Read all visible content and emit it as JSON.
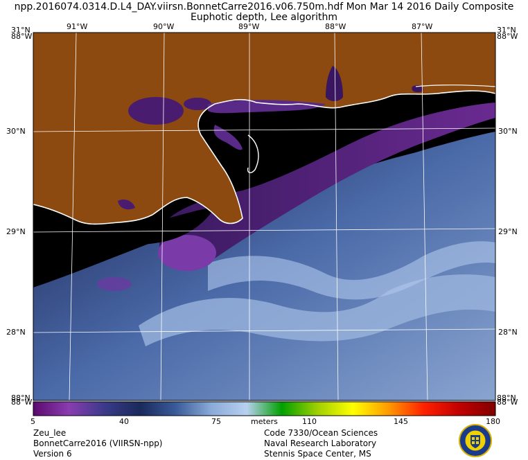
{
  "header": {
    "line1": "npp.2016074.0314.D.L4_DAY.viirsn.BonnetCarre2016.v06.750m.hdf    Mon Mar 14 2016 Daily Composite",
    "line2": "Euphotic depth, Lee algorithm"
  },
  "map": {
    "lon_labels": [
      "91°W",
      "90°W",
      "89°W",
      "88°W",
      "87°W"
    ],
    "lat_labels": [
      "30°N",
      "29°N",
      "28°N"
    ],
    "corner_top_left_top": "31°N",
    "corner_top_left_bottom": "88°W",
    "corner_top_right_top": "31°N",
    "corner_top_right_bottom": "88°W",
    "corner_bottom_left_top": "88°N",
    "corner_bottom_left_bottom": "88°W",
    "corner_bottom_right_top": "88°N",
    "corner_bottom_right_bottom": "88°W",
    "colors": {
      "land": "#8c4a10",
      "no_data": "#000000",
      "coast": "#ffffff",
      "grid": "#ffffff"
    }
  },
  "colorbar": {
    "ticks": [
      "5",
      "40",
      "75",
      "110",
      "145",
      "180"
    ],
    "unit": "meters",
    "stops": [
      "#5a0a6e",
      "#8a3cb0",
      "#3a3a8a",
      "#1a2a5a",
      "#3a5a9a",
      "#8aaad8",
      "#b8d0f0",
      "#00a000",
      "#a0d000",
      "#ffff00",
      "#ff9900",
      "#ff2000",
      "#c00000",
      "#800000"
    ]
  },
  "footer": {
    "left_line1": "Zeu_lee",
    "left_line2": "BonnetCarre2016 (VIIRSN-npp)",
    "left_line3": "Version 6",
    "right_line1": "Code 7330/Ocean Sciences",
    "right_line2": "Naval Research Laboratory",
    "right_line3": "Stennis Space Center, MS"
  }
}
